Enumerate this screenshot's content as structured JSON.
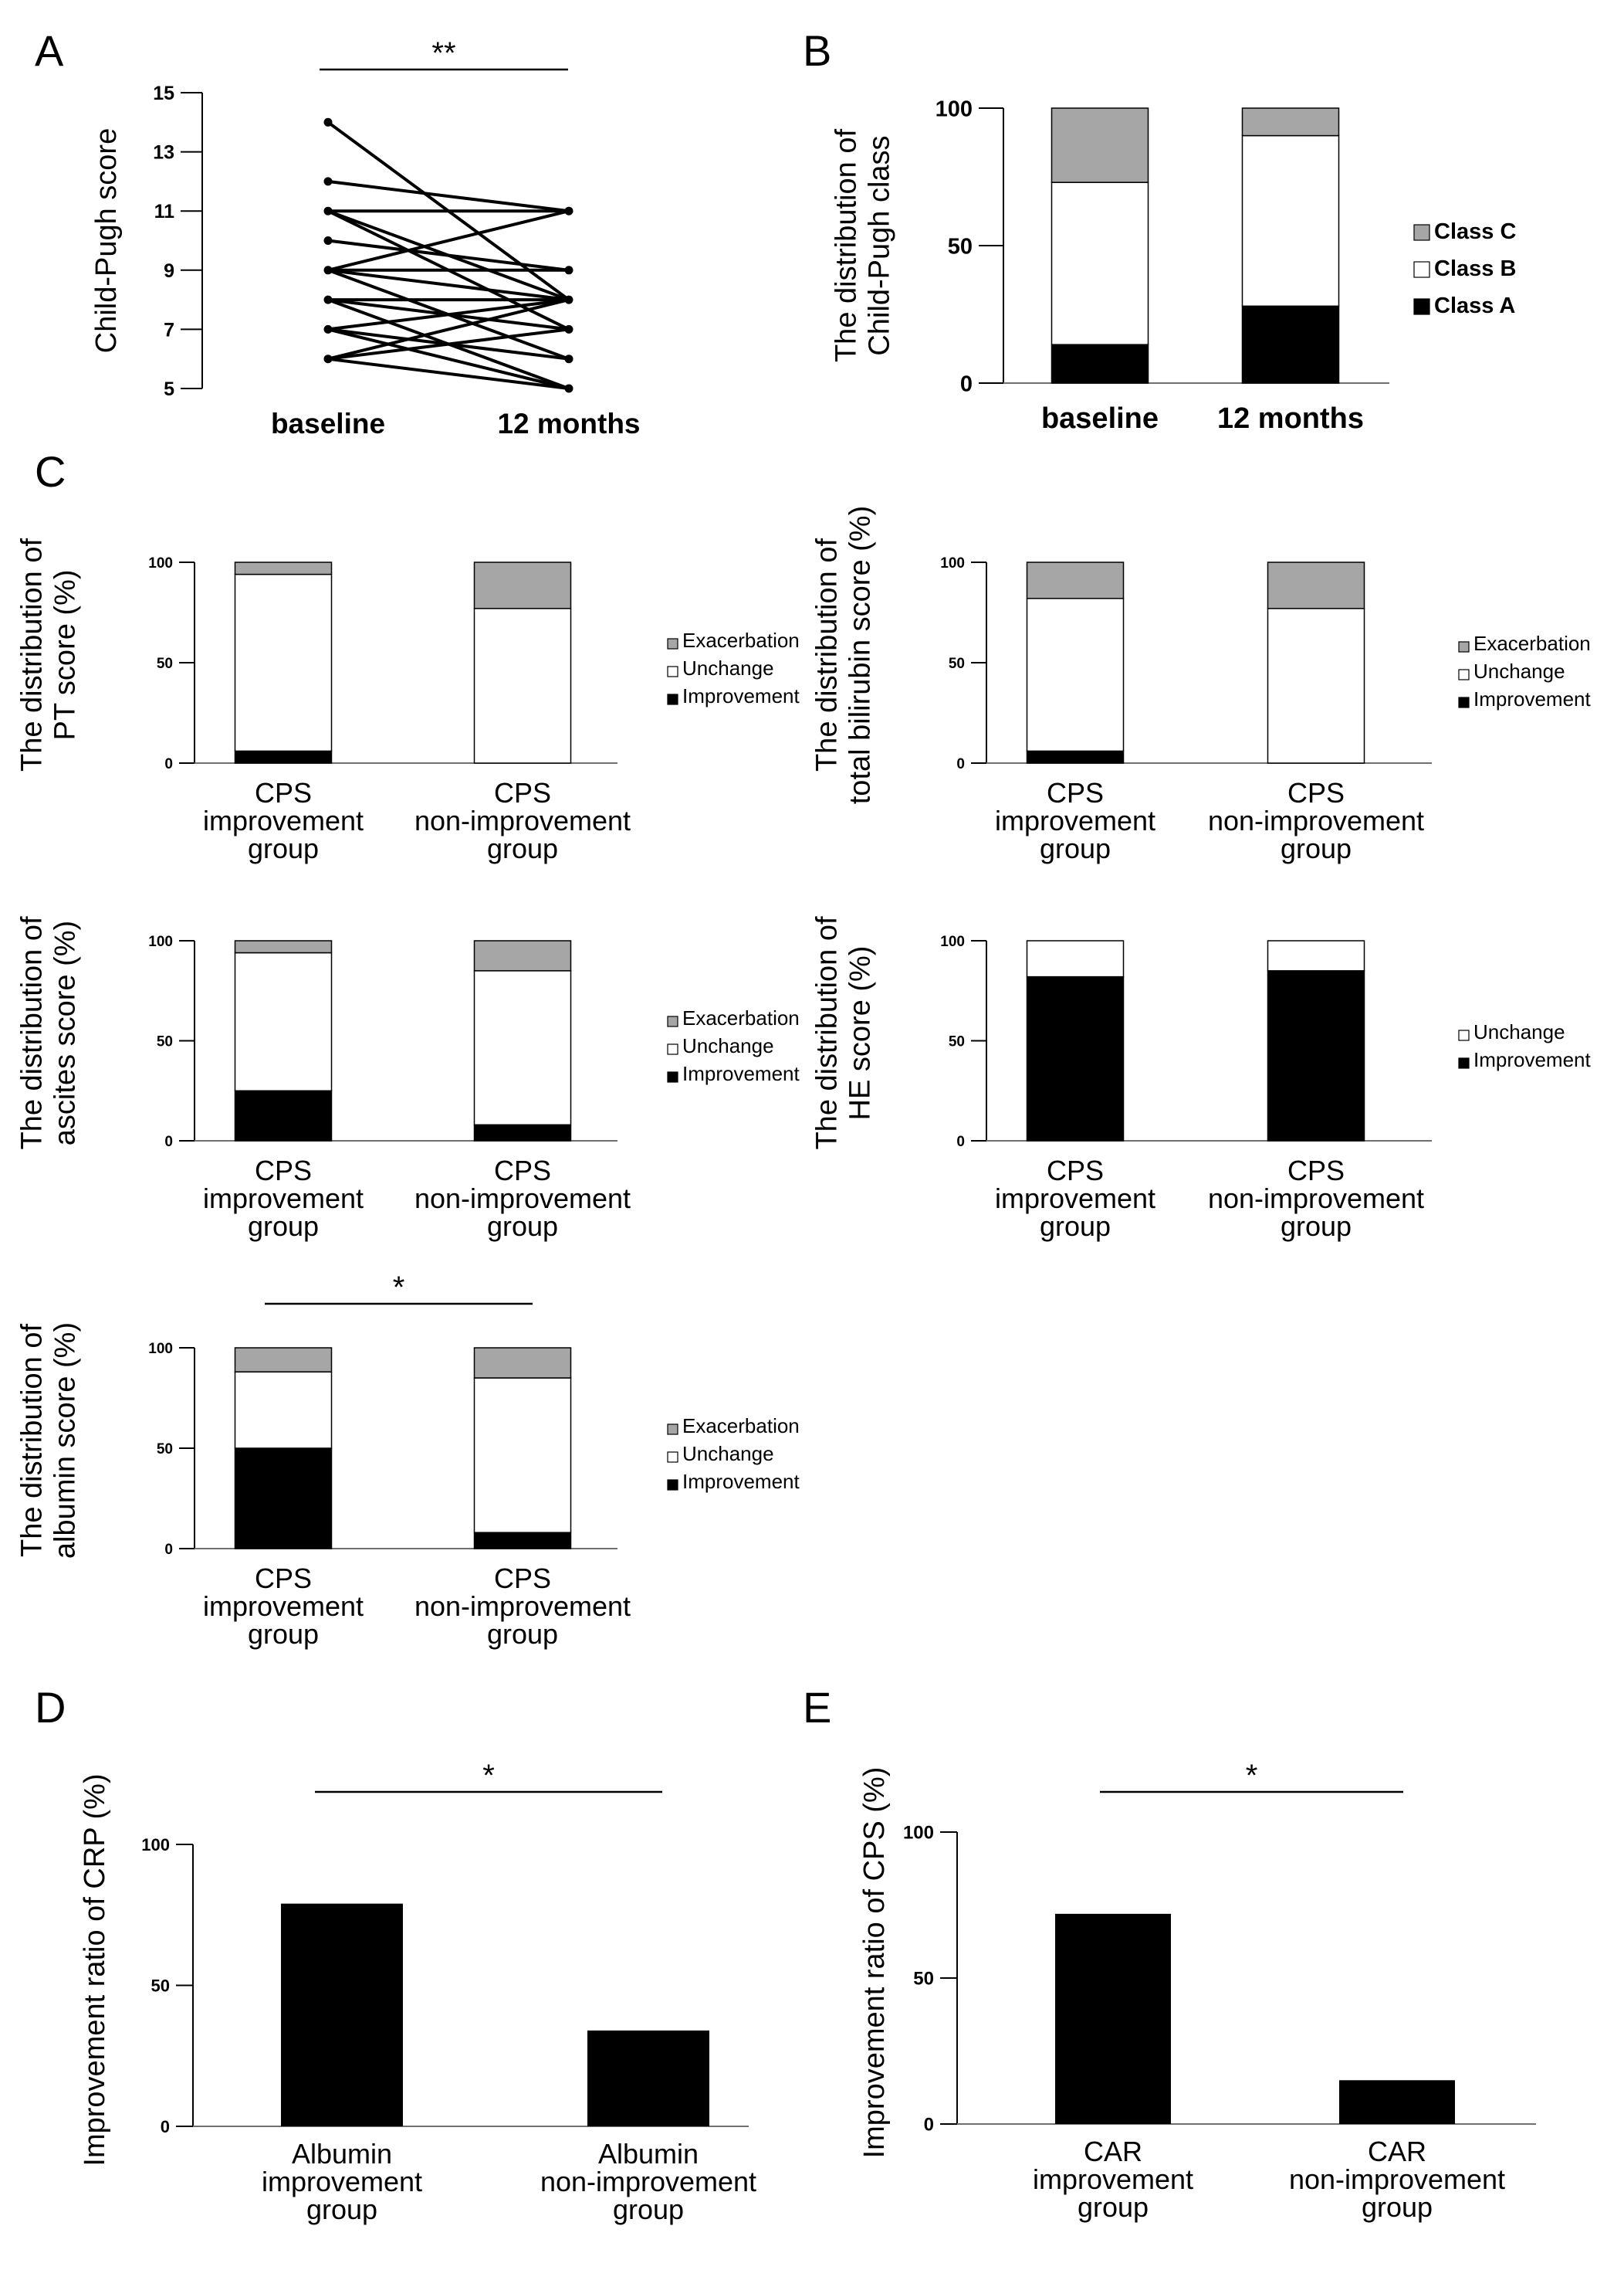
{
  "colors": {
    "black": "#000000",
    "gray": "#a6a6a6",
    "white": "#ffffff",
    "axis": "#707070"
  },
  "panels": {
    "A": {
      "letter": "A",
      "sig": "**"
    },
    "B": {
      "letter": "B"
    },
    "C": {
      "letter": "C"
    },
    "C_albumin": {
      "sig": "*"
    },
    "D": {
      "letter": "D",
      "sig": "*"
    },
    "E": {
      "letter": "E",
      "sig": "*"
    }
  },
  "chart_data": [
    {
      "id": "A",
      "type": "line",
      "ylabel": "Child-Pugh score",
      "categories": [
        "baseline",
        "12 months"
      ],
      "ylim": [
        5,
        15
      ],
      "yticks": [
        "5",
        "7",
        "9",
        "11",
        "13",
        "15"
      ],
      "significance": "**",
      "pairs": [
        [
          14,
          8
        ],
        [
          12,
          11
        ],
        [
          11,
          11
        ],
        [
          11,
          8
        ],
        [
          11,
          7
        ],
        [
          10,
          9
        ],
        [
          9,
          11
        ],
        [
          9,
          9
        ],
        [
          9,
          8
        ],
        [
          9,
          6
        ],
        [
          8,
          8
        ],
        [
          8,
          7
        ],
        [
          8,
          5
        ],
        [
          7,
          8
        ],
        [
          7,
          6
        ],
        [
          7,
          5
        ],
        [
          6,
          8
        ],
        [
          6,
          7
        ],
        [
          6,
          5
        ]
      ]
    },
    {
      "id": "B",
      "type": "bar",
      "stacked": true,
      "ylabel_lines": [
        "The distribution of",
        "Child-Pugh class"
      ],
      "categories": [
        "baseline",
        "12 months"
      ],
      "ylim": [
        0,
        100
      ],
      "yticks": [
        "0",
        "50",
        "100"
      ],
      "series": [
        {
          "name": "Class A",
          "color": "#000000",
          "values": [
            14,
            28
          ]
        },
        {
          "name": "Class B",
          "color": "#ffffff",
          "values": [
            59,
            62
          ]
        },
        {
          "name": "Class C",
          "color": "#a6a6a6",
          "values": [
            27,
            10
          ]
        }
      ],
      "legend": [
        "Class C",
        "Class B",
        "Class A"
      ]
    },
    {
      "id": "C1",
      "type": "bar",
      "stacked": true,
      "ylabel_lines": [
        "The distribution of",
        "PT score (%)"
      ],
      "categories": [
        [
          "CPS",
          "improvement",
          "group"
        ],
        [
          "CPS",
          "non-improvement",
          "group"
        ]
      ],
      "ylim": [
        0,
        100
      ],
      "yticks": [
        "0",
        "50",
        "100"
      ],
      "series": [
        {
          "name": "Improvement",
          "color": "#000000",
          "values": [
            6,
            0
          ]
        },
        {
          "name": "Unchange",
          "color": "#ffffff",
          "values": [
            88,
            77
          ]
        },
        {
          "name": "Exacerbation",
          "color": "#a6a6a6",
          "values": [
            6,
            23
          ]
        }
      ],
      "legend": [
        "Exacerbation",
        "Unchange",
        "Improvement"
      ]
    },
    {
      "id": "C2",
      "type": "bar",
      "stacked": true,
      "ylabel_lines": [
        "The distribution of",
        "total bilirubin score (%)"
      ],
      "categories": [
        [
          "CPS",
          "improvement",
          "group"
        ],
        [
          "CPS",
          "non-improvement",
          "group"
        ]
      ],
      "ylim": [
        0,
        100
      ],
      "yticks": [
        "0",
        "50",
        "100"
      ],
      "series": [
        {
          "name": "Improvement",
          "color": "#000000",
          "values": [
            6,
            0
          ]
        },
        {
          "name": "Unchange",
          "color": "#ffffff",
          "values": [
            76,
            77
          ]
        },
        {
          "name": "Exacerbation",
          "color": "#a6a6a6",
          "values": [
            18,
            23
          ]
        }
      ],
      "legend": [
        "Exacerbation",
        "Unchange",
        "Improvement"
      ]
    },
    {
      "id": "C3",
      "type": "bar",
      "stacked": true,
      "ylabel_lines": [
        "The distribution of",
        "ascites score (%)"
      ],
      "categories": [
        [
          "CPS",
          "improvement",
          "group"
        ],
        [
          "CPS",
          "non-improvement",
          "group"
        ]
      ],
      "ylim": [
        0,
        100
      ],
      "yticks": [
        "0",
        "50",
        "100"
      ],
      "series": [
        {
          "name": "Improvement",
          "color": "#000000",
          "values": [
            25,
            8
          ]
        },
        {
          "name": "Unchange",
          "color": "#ffffff",
          "values": [
            69,
            77
          ]
        },
        {
          "name": "Exacerbation",
          "color": "#a6a6a6",
          "values": [
            6,
            15
          ]
        }
      ],
      "legend": [
        "Exacerbation",
        "Unchange",
        "Improvement"
      ]
    },
    {
      "id": "C4",
      "type": "bar",
      "stacked": true,
      "ylabel_lines": [
        "The distribution of",
        "HE score (%)"
      ],
      "categories": [
        [
          "CPS",
          "improvement",
          "group"
        ],
        [
          "CPS",
          "non-improvement",
          "group"
        ]
      ],
      "ylim": [
        0,
        100
      ],
      "yticks": [
        "0",
        "50",
        "100"
      ],
      "series": [
        {
          "name": "Improvement",
          "color": "#000000",
          "values": [
            82,
            85
          ]
        },
        {
          "name": "Unchange",
          "color": "#ffffff",
          "values": [
            18,
            15
          ]
        }
      ],
      "legend": [
        "Unchange",
        "Improvement"
      ]
    },
    {
      "id": "C5",
      "type": "bar",
      "stacked": true,
      "ylabel_lines": [
        "The distribution of",
        "albumin score (%)"
      ],
      "categories": [
        [
          "CPS",
          "improvement",
          "group"
        ],
        [
          "CPS",
          "non-improvement",
          "group"
        ]
      ],
      "ylim": [
        0,
        100
      ],
      "yticks": [
        "0",
        "50",
        "100"
      ],
      "significance": "*",
      "series": [
        {
          "name": "Improvement",
          "color": "#000000",
          "values": [
            50,
            8
          ]
        },
        {
          "name": "Unchange",
          "color": "#ffffff",
          "values": [
            38,
            77
          ]
        },
        {
          "name": "Exacerbation",
          "color": "#a6a6a6",
          "values": [
            12,
            15
          ]
        }
      ],
      "legend": [
        "Exacerbation",
        "Unchange",
        "Improvement"
      ]
    },
    {
      "id": "D",
      "type": "bar",
      "ylabel": "Improvement ratio of CRP (%)",
      "categories": [
        [
          "Albumin",
          "improvement",
          "group"
        ],
        [
          "Albumin",
          "non-improvement",
          "group"
        ]
      ],
      "ylim": [
        0,
        100
      ],
      "yticks": [
        "0",
        "50",
        "100"
      ],
      "values": [
        79,
        34
      ],
      "significance": "*"
    },
    {
      "id": "E",
      "type": "bar",
      "ylabel": "Improvement ratio of CPS (%)",
      "categories": [
        [
          "CAR",
          "improvement",
          "group"
        ],
        [
          "CAR",
          "non-improvement",
          "group"
        ]
      ],
      "ylim": [
        0,
        100
      ],
      "yticks": [
        "0",
        "50",
        "100"
      ],
      "values": [
        72,
        15
      ],
      "significance": "*"
    }
  ]
}
